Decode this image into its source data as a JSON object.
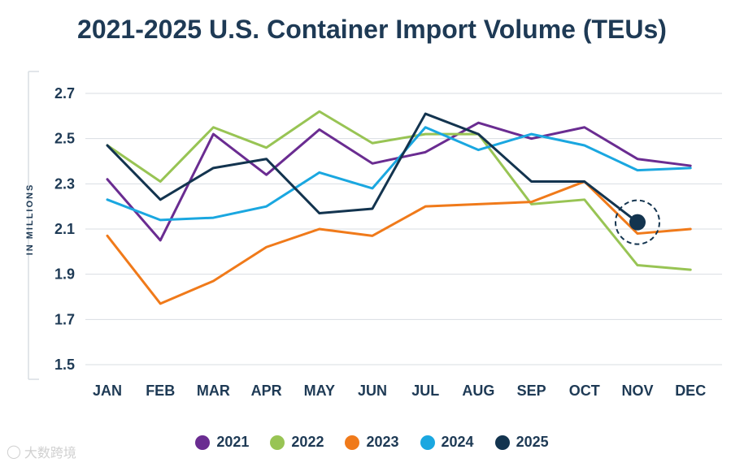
{
  "chart_data": {
    "type": "line",
    "title": "2021-2025 U.S. Container Import Volume (TEUs)",
    "ylabel": "IN MILLIONS",
    "xlabel": "",
    "ylim": [
      1.5,
      2.7
    ],
    "yticks": [
      "2.7",
      "2.5",
      "2.3",
      "2.1",
      "1.9",
      "1.7",
      "1.5"
    ],
    "ytick_values": [
      2.7,
      2.5,
      2.3,
      2.1,
      1.9,
      1.7,
      1.5
    ],
    "categories": [
      "JAN",
      "FEB",
      "MAR",
      "APR",
      "MAY",
      "JUN",
      "JUL",
      "AUG",
      "SEP",
      "OCT",
      "NOV",
      "DEC"
    ],
    "grid": true,
    "legend_position": "bottom",
    "series": [
      {
        "name": "2021",
        "color": "#6a2c91",
        "values": [
          2.32,
          2.05,
          2.52,
          2.34,
          2.54,
          2.39,
          2.44,
          2.57,
          2.5,
          2.55,
          2.41,
          2.38
        ]
      },
      {
        "name": "2022",
        "color": "#98c454",
        "values": [
          2.47,
          2.31,
          2.55,
          2.46,
          2.62,
          2.48,
          2.52,
          2.52,
          2.21,
          2.23,
          1.94,
          1.92
        ]
      },
      {
        "name": "2023",
        "color": "#f07a1a",
        "values": [
          2.07,
          1.77,
          1.87,
          2.02,
          2.1,
          2.07,
          2.2,
          2.21,
          2.22,
          2.31,
          2.08,
          2.1
        ]
      },
      {
        "name": "2024",
        "color": "#1aa7e0",
        "values": [
          2.23,
          2.14,
          2.15,
          2.2,
          2.35,
          2.28,
          2.55,
          2.45,
          2.52,
          2.47,
          2.36,
          2.37
        ]
      },
      {
        "name": "2025",
        "color": "#13344f",
        "values": [
          2.47,
          2.23,
          2.37,
          2.41,
          2.17,
          2.19,
          2.61,
          2.52,
          2.31,
          2.31,
          2.13,
          null
        ]
      }
    ],
    "annotation": {
      "series": "2025",
      "category": "NOV",
      "value": 2.13,
      "style": "dashed-circle"
    }
  },
  "watermark": {
    "text": "大数跨境"
  }
}
